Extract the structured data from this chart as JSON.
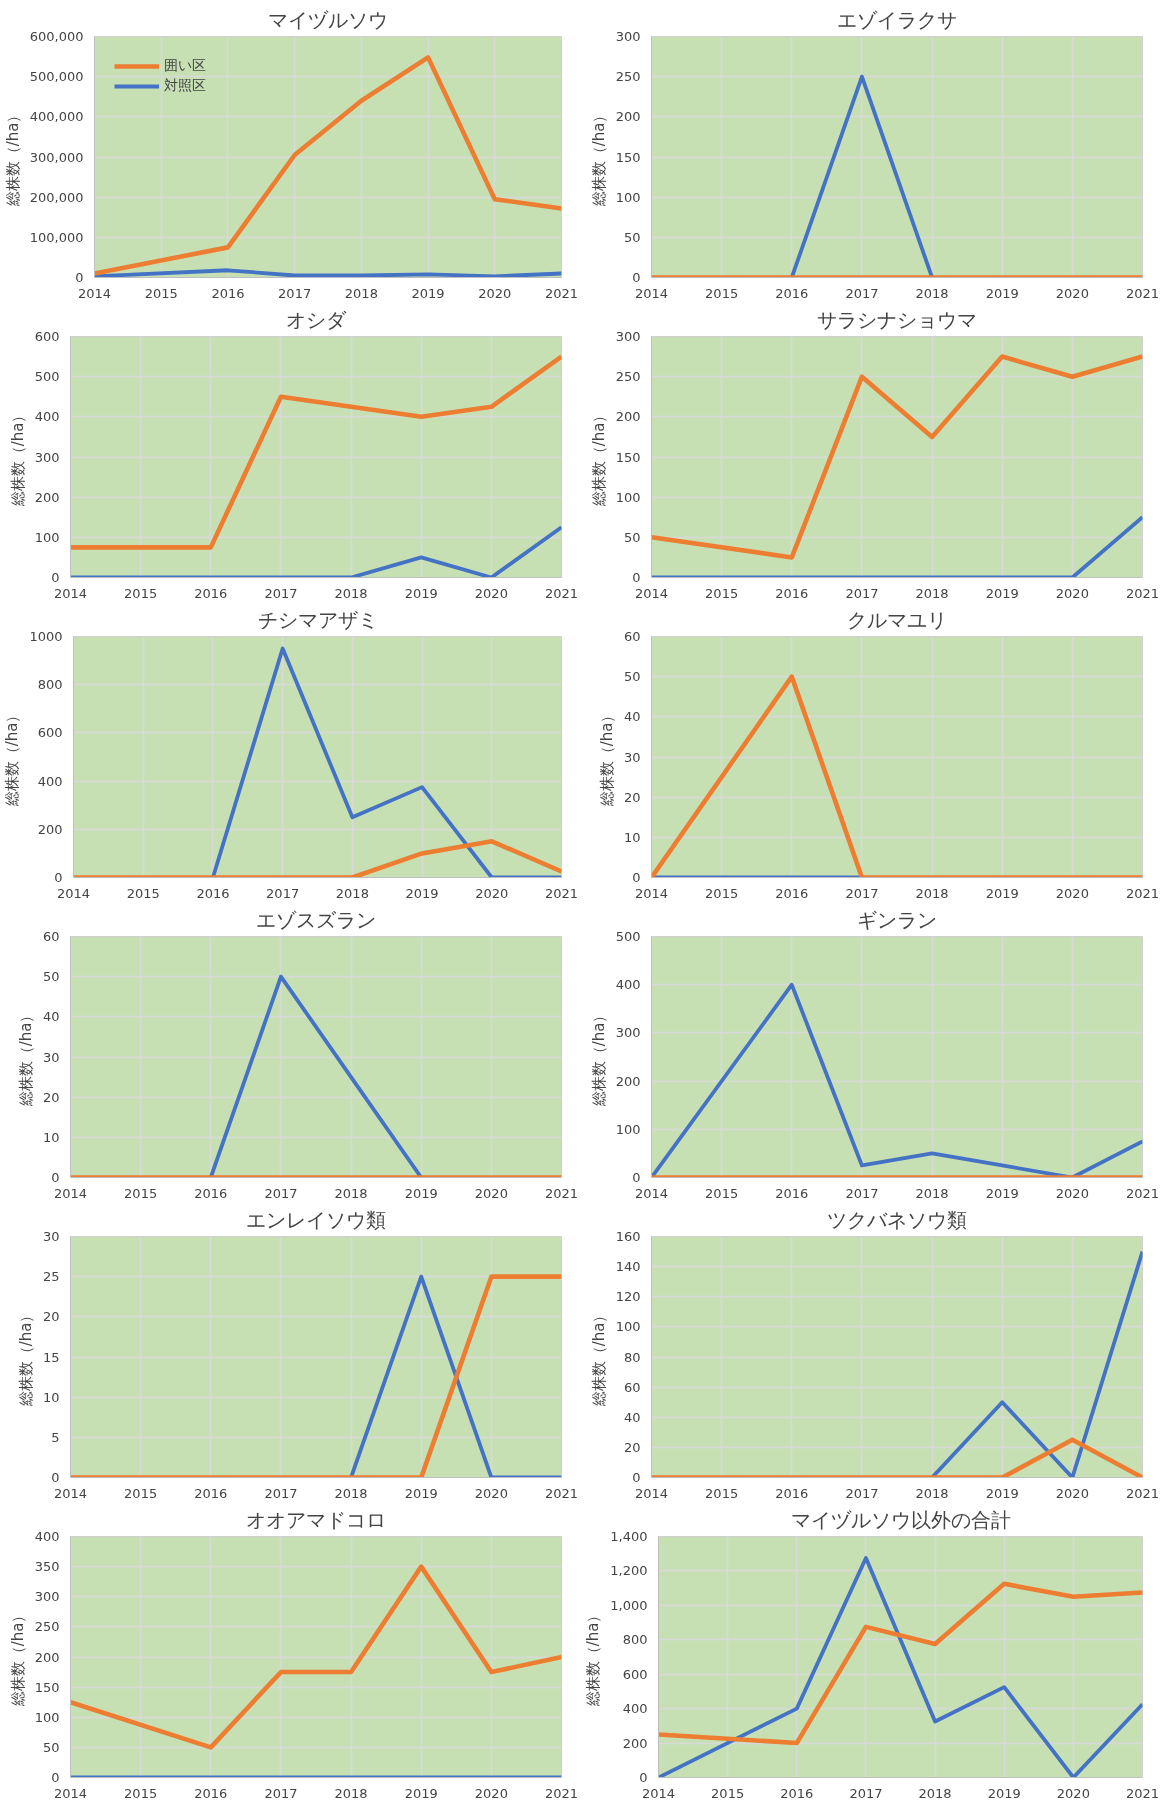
{
  "chart_data": [
    {
      "type": "line",
      "title": "マイヅルソウ",
      "ylabel": "総株数（/ha）",
      "x": [
        2014,
        2016,
        2017,
        2018,
        2019,
        2020,
        2021
      ],
      "xlim": [
        2014,
        2021
      ],
      "xticks": [
        2014,
        2015,
        2016,
        2017,
        2018,
        2019,
        2020,
        2021
      ],
      "ylim": [
        0,
        600000
      ],
      "yticks": [
        0,
        {
          "value": 100000,
          "label": "100,000"
        },
        {
          "value": 200000,
          "label": "200,000"
        },
        {
          "value": 300000,
          "label": "300,000"
        },
        {
          "value": 400000,
          "label": "400,000"
        },
        {
          "value": 500000,
          "label": "500,000"
        },
        {
          "value": 600000,
          "label": "600,000"
        }
      ],
      "grid": true,
      "legend": "top left",
      "series": [
        {
          "name": "囲い区",
          "color": "#ed7d31",
          "values": [
            10000,
            75000,
            305000,
            440000,
            548000,
            195000,
            172000
          ]
        },
        {
          "name": "対照区",
          "color": "#4472c4",
          "values": [
            3000,
            18000,
            5000,
            5000,
            8000,
            3000,
            10000
          ]
        }
      ]
    },
    {
      "type": "line",
      "title": "エゾイラクサ",
      "ylabel": "総株数（/ha）",
      "x": [
        2014,
        2016,
        2017,
        2018,
        2019,
        2020,
        2021
      ],
      "xlim": [
        2014,
        2021
      ],
      "xticks": [
        2014,
        2015,
        2016,
        2017,
        2018,
        2019,
        2020,
        2021
      ],
      "ylim": [
        0,
        300
      ],
      "yticks": [
        0,
        50,
        100,
        150,
        200,
        250,
        300
      ],
      "grid": true,
      "series": [
        {
          "color": "#ed7d31",
          "values": [
            0,
            0,
            0,
            0,
            0,
            0,
            0
          ]
        },
        {
          "color": "#4472c4",
          "values": [
            null,
            0,
            250,
            0,
            null,
            null,
            null
          ]
        }
      ]
    },
    {
      "type": "line",
      "title": "オシダ",
      "ylabel": "総株数（/ha）",
      "x": [
        2014,
        2016,
        2017,
        2018,
        2019,
        2020,
        2021
      ],
      "xlim": [
        2014,
        2021
      ],
      "xticks": [
        2014,
        2015,
        2016,
        2017,
        2018,
        2019,
        2020,
        2021
      ],
      "ylim": [
        0,
        600
      ],
      "yticks": [
        0,
        100,
        200,
        300,
        400,
        500,
        600
      ],
      "grid": true,
      "series": [
        {
          "color": "#ed7d31",
          "values": [
            75,
            75,
            450,
            425,
            400,
            425,
            550
          ]
        },
        {
          "color": "#4472c4",
          "values": [
            0,
            0,
            0,
            0,
            50,
            0,
            125
          ]
        }
      ]
    },
    {
      "type": "line",
      "title": "サラシナショウマ",
      "ylabel": "総株数（/ha）",
      "x": [
        2014,
        2016,
        2017,
        2018,
        2019,
        2020,
        2021
      ],
      "xlim": [
        2014,
        2021
      ],
      "xticks": [
        2014,
        2015,
        2016,
        2017,
        2018,
        2019,
        2020,
        2021
      ],
      "ylim": [
        0,
        300
      ],
      "yticks": [
        0,
        50,
        100,
        150,
        200,
        250,
        300
      ],
      "grid": true,
      "series": [
        {
          "color": "#ed7d31",
          "values": [
            50,
            25,
            250,
            175,
            275,
            250,
            275
          ]
        },
        {
          "color": "#4472c4",
          "values": [
            0,
            0,
            0,
            0,
            0,
            0,
            75
          ]
        }
      ]
    },
    {
      "type": "line",
      "title": "チシマアザミ",
      "ylabel": "総株数（/ha）",
      "x": [
        2014,
        2016,
        2017,
        2018,
        2019,
        2020,
        2021
      ],
      "xlim": [
        2014,
        2021
      ],
      "xticks": [
        2014,
        2015,
        2016,
        2017,
        2018,
        2019,
        2020,
        2021
      ],
      "ylim": [
        0,
        1000
      ],
      "yticks": [
        0,
        200,
        400,
        600,
        800,
        1000
      ],
      "grid": true,
      "series": [
        {
          "color": "#ed7d31",
          "values": [
            0,
            0,
            0,
            0,
            100,
            150,
            25
          ]
        },
        {
          "color": "#4472c4",
          "values": [
            null,
            0,
            950,
            250,
            375,
            0,
            0
          ]
        }
      ]
    },
    {
      "type": "line",
      "title": "クルマユリ",
      "ylabel": "総株数（/ha）",
      "x": [
        2014,
        2016,
        2017,
        2018,
        2019,
        2020,
        2021
      ],
      "xlim": [
        2014,
        2021
      ],
      "xticks": [
        2014,
        2015,
        2016,
        2017,
        2018,
        2019,
        2020,
        2021
      ],
      "ylim": [
        0,
        60
      ],
      "yticks": [
        0,
        10,
        20,
        30,
        40,
        50,
        60
      ],
      "grid": true,
      "series": [
        {
          "color": "#ed7d31",
          "values": [
            0,
            50,
            0,
            0,
            0,
            0,
            0
          ]
        },
        {
          "color": "#4472c4",
          "values": [
            0,
            0,
            0,
            null,
            null,
            null,
            null
          ]
        }
      ]
    },
    {
      "type": "line",
      "title": "エゾスズラン",
      "ylabel": "総株数（/ha）",
      "x": [
        2014,
        2016,
        2017,
        2018,
        2019,
        2020,
        2021
      ],
      "xlim": [
        2014,
        2021
      ],
      "xticks": [
        2014,
        2015,
        2016,
        2017,
        2018,
        2019,
        2020,
        2021
      ],
      "ylim": [
        0,
        60
      ],
      "yticks": [
        0,
        10,
        20,
        30,
        40,
        50,
        60
      ],
      "grid": true,
      "series": [
        {
          "color": "#ed7d31",
          "values": [
            0,
            0,
            0,
            0,
            0,
            0,
            0
          ]
        },
        {
          "color": "#4472c4",
          "values": [
            null,
            0,
            50,
            25,
            0,
            null,
            null
          ]
        }
      ]
    },
    {
      "type": "line",
      "title": "ギンラン",
      "ylabel": "総株数（/ha）",
      "x": [
        2014,
        2016,
        2017,
        2018,
        2019,
        2020,
        2021
      ],
      "xlim": [
        2014,
        2021
      ],
      "xticks": [
        2014,
        2015,
        2016,
        2017,
        2018,
        2019,
        2020,
        2021
      ],
      "ylim": [
        0,
        500
      ],
      "yticks": [
        0,
        100,
        200,
        300,
        400,
        500
      ],
      "grid": true,
      "series": [
        {
          "color": "#ed7d31",
          "values": [
            0,
            0,
            0,
            0,
            0,
            0,
            0
          ]
        },
        {
          "color": "#4472c4",
          "values": [
            0,
            400,
            25,
            50,
            25,
            0,
            75
          ]
        }
      ]
    },
    {
      "type": "line",
      "title": "エンレイソウ類",
      "ylabel": "総株数（/ha）",
      "x": [
        2014,
        2016,
        2017,
        2018,
        2019,
        2020,
        2021
      ],
      "xlim": [
        2014,
        2021
      ],
      "xticks": [
        2014,
        2015,
        2016,
        2017,
        2018,
        2019,
        2020,
        2021
      ],
      "ylim": [
        0,
        30
      ],
      "yticks": [
        0,
        5,
        10,
        15,
        20,
        25,
        30
      ],
      "grid": true,
      "series": [
        {
          "color": "#ed7d31",
          "values": [
            0,
            0,
            0,
            0,
            0,
            25,
            25
          ]
        },
        {
          "color": "#4472c4",
          "values": [
            null,
            null,
            null,
            0,
            25,
            0,
            0
          ]
        }
      ]
    },
    {
      "type": "line",
      "title": "ツクバネソウ類",
      "ylabel": "総株数（/ha）",
      "x": [
        2014,
        2016,
        2017,
        2018,
        2019,
        2020,
        2021
      ],
      "xlim": [
        2014,
        2021
      ],
      "xticks": [
        2014,
        2015,
        2016,
        2017,
        2018,
        2019,
        2020,
        2021
      ],
      "ylim": [
        0,
        160
      ],
      "yticks": [
        0,
        20,
        40,
        60,
        80,
        100,
        120,
        140,
        160
      ],
      "grid": true,
      "series": [
        {
          "color": "#ed7d31",
          "values": [
            0,
            0,
            0,
            0,
            0,
            25,
            0
          ]
        },
        {
          "color": "#4472c4",
          "values": [
            null,
            null,
            null,
            0,
            50,
            0,
            150
          ]
        }
      ]
    },
    {
      "type": "line",
      "title": "オオアマドコロ",
      "ylabel": "総株数（/ha）",
      "x": [
        2014,
        2016,
        2017,
        2018,
        2019,
        2020,
        2021
      ],
      "xlim": [
        2014,
        2021
      ],
      "xticks": [
        2014,
        2015,
        2016,
        2017,
        2018,
        2019,
        2020,
        2021
      ],
      "ylim": [
        0,
        400
      ],
      "yticks": [
        0,
        50,
        100,
        150,
        200,
        250,
        300,
        350,
        400
      ],
      "grid": true,
      "series": [
        {
          "color": "#ed7d31",
          "values": [
            125,
            50,
            175,
            175,
            350,
            175,
            200
          ]
        },
        {
          "color": "#4472c4",
          "values": [
            0,
            0,
            0,
            0,
            0,
            0,
            0
          ]
        }
      ]
    },
    {
      "type": "line",
      "title": "マイヅルソウ以外の合計",
      "ylabel": "総株数（/ha）",
      "x": [
        2014,
        2016,
        2017,
        2018,
        2019,
        2020,
        2021
      ],
      "xlim": [
        2014,
        2021
      ],
      "xticks": [
        2014,
        2015,
        2016,
        2017,
        2018,
        2019,
        2020,
        2021
      ],
      "ylim": [
        0,
        1400
      ],
      "yticks": [
        0,
        200,
        400,
        600,
        800,
        {
          "value": 1000,
          "label": "1,000"
        },
        {
          "value": 1200,
          "label": "1,200"
        },
        {
          "value": 1400,
          "label": "1,400"
        }
      ],
      "grid": true,
      "series": [
        {
          "color": "#ed7d31",
          "values": [
            250,
            200,
            875,
            775,
            1125,
            1050,
            1075
          ]
        },
        {
          "color": "#4472c4",
          "values": [
            0,
            400,
            1275,
            325,
            525,
            0,
            425
          ]
        }
      ]
    }
  ]
}
